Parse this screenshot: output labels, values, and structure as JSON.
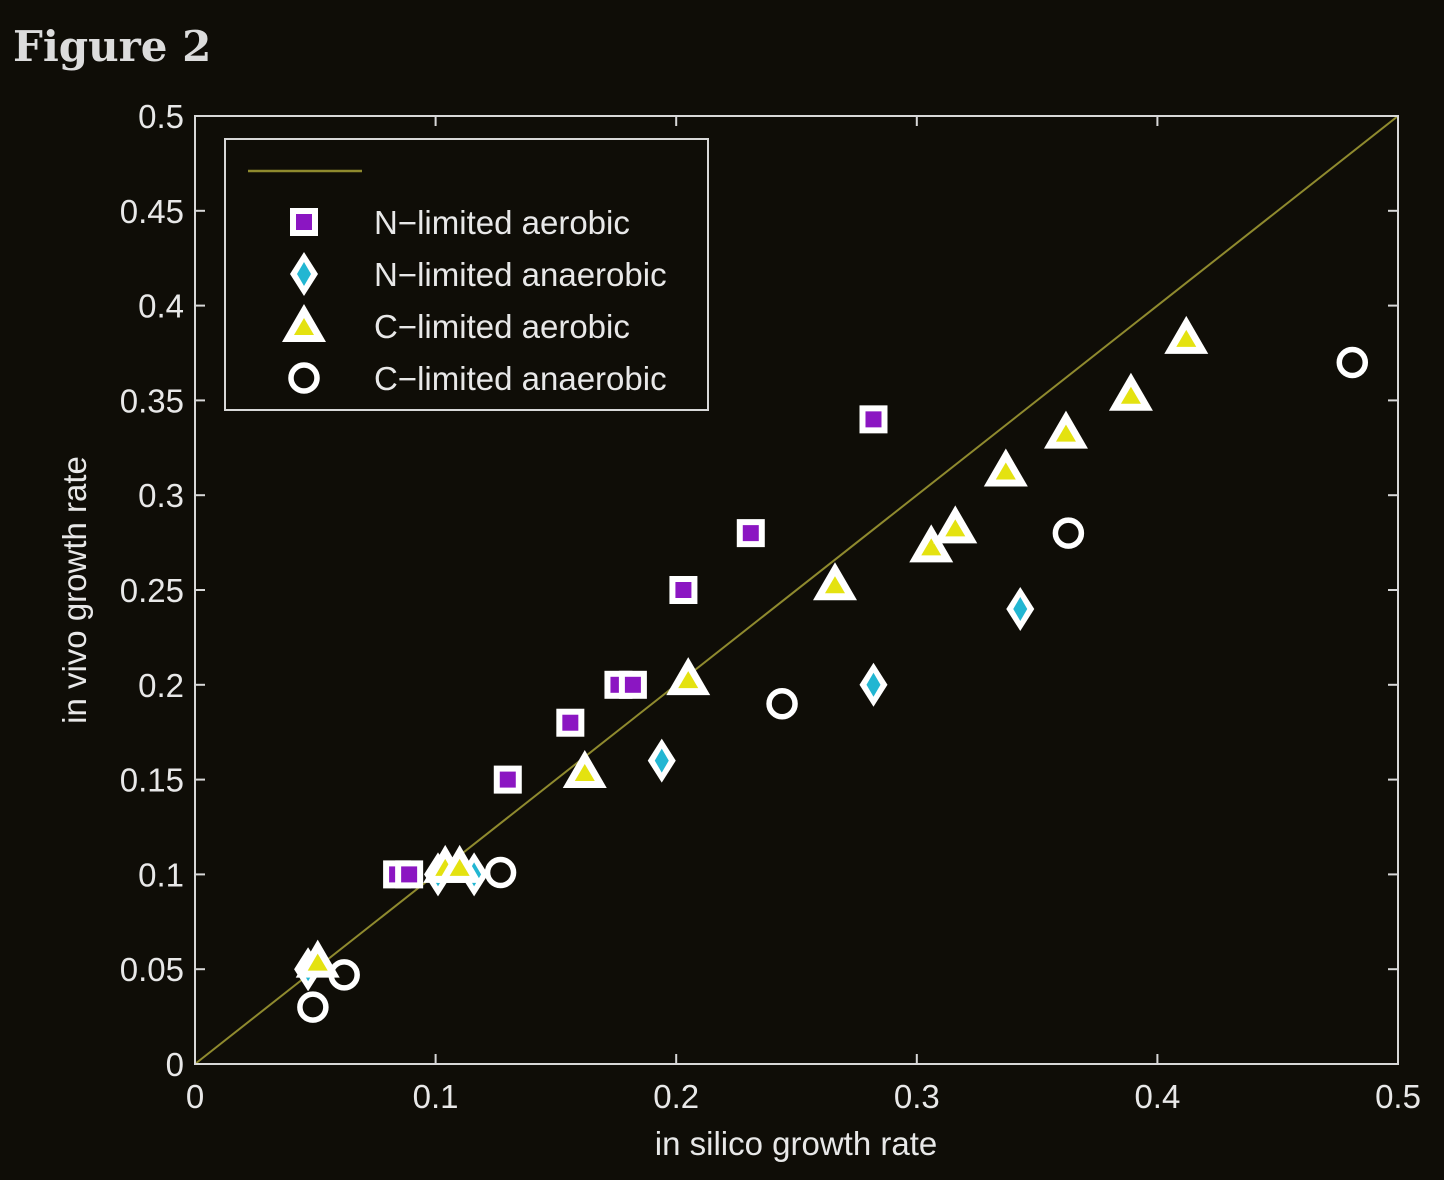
{
  "figure_title": "Figure 2",
  "chart_data": {
    "type": "scatter",
    "title": "",
    "xlabel": "in silico growth rate",
    "ylabel": "in vivo growth rate",
    "xlim": [
      0,
      0.5
    ],
    "ylim": [
      0,
      0.5
    ],
    "xticks": [
      "0",
      "0.1",
      "0.2",
      "0.3",
      "0.4",
      "0.5"
    ],
    "yticks": [
      "0",
      "0.05",
      "0.1",
      "0.15",
      "0.2",
      "0.25",
      "0.3",
      "0.35",
      "0.4",
      "0.45",
      "0.5"
    ],
    "grid": false,
    "legend_position": "top-left",
    "reference_line": {
      "x": [
        0,
        0.5
      ],
      "y": [
        0,
        0.5
      ],
      "color": "#8f8a2e"
    },
    "series": [
      {
        "name": "N−limited aerobic",
        "marker": "square",
        "fill": "#8b16c2",
        "x": [
          0.084,
          0.089,
          0.13,
          0.156,
          0.176,
          0.182,
          0.203,
          0.231,
          0.282
        ],
        "y": [
          0.1,
          0.1,
          0.15,
          0.18,
          0.2,
          0.2,
          0.25,
          0.28,
          0.34
        ]
      },
      {
        "name": "N−limited anaerobic",
        "marker": "diamond",
        "fill": "#22b6d2",
        "x": [
          0.047,
          0.101,
          0.116,
          0.194,
          0.282,
          0.343
        ],
        "y": [
          0.05,
          0.1,
          0.1,
          0.16,
          0.2,
          0.24
        ]
      },
      {
        "name": "C−limited aerobic",
        "marker": "triangle",
        "fill": "#e4e210",
        "x": [
          0.051,
          0.104,
          0.11,
          0.162,
          0.205,
          0.266,
          0.306,
          0.316,
          0.337,
          0.362,
          0.389,
          0.412
        ],
        "y": [
          0.054,
          0.104,
          0.104,
          0.154,
          0.203,
          0.253,
          0.273,
          0.283,
          0.313,
          0.333,
          0.353,
          0.383
        ]
      },
      {
        "name": "C−limited anaerobic",
        "marker": "circle",
        "fill": "none",
        "x": [
          0.049,
          0.062,
          0.127,
          0.244,
          0.363,
          0.481
        ],
        "y": [
          0.03,
          0.047,
          0.101,
          0.19,
          0.28,
          0.37
        ]
      }
    ]
  }
}
